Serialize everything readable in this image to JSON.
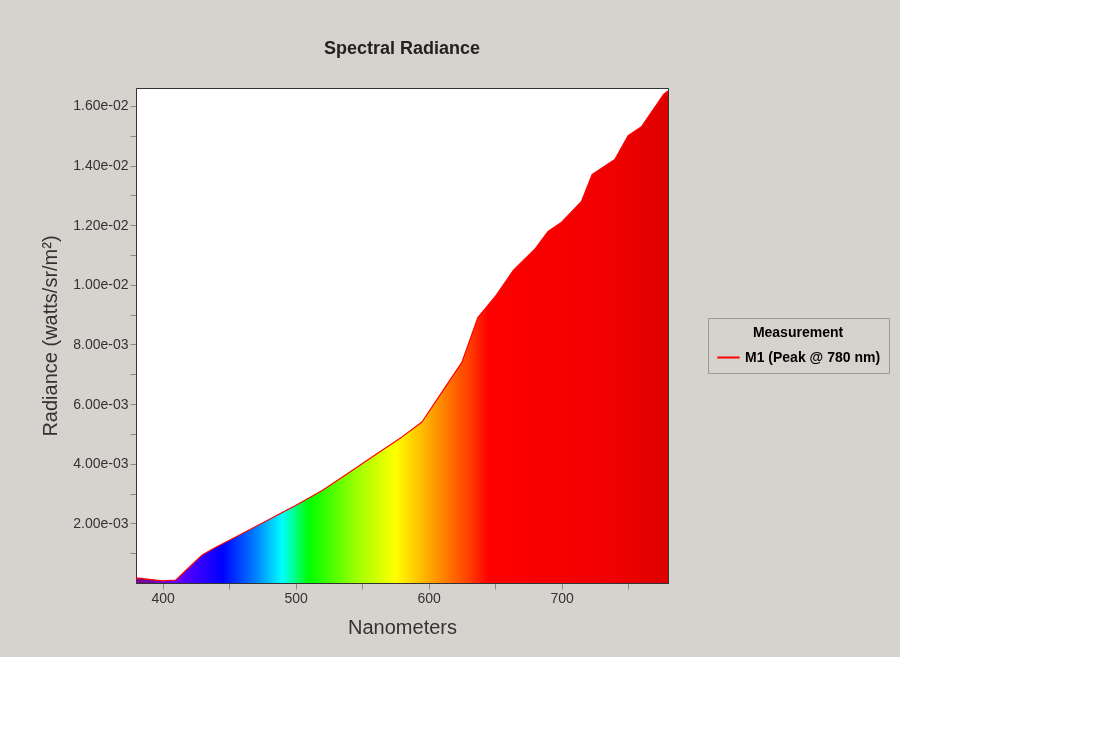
{
  "chart_data": {
    "type": "area",
    "title": "Spectral Radiance",
    "xlabel": "Nanometers",
    "ylabel": "Radiance (watts/sr/m²)",
    "legend_title": "Measurement",
    "legend": "right",
    "grid": false,
    "x": [
      380,
      400,
      410,
      420,
      430,
      440,
      460,
      480,
      500,
      520,
      540,
      560,
      580,
      595,
      610,
      625,
      637,
      650,
      664,
      680,
      690,
      700,
      715,
      723,
      740,
      750,
      760,
      777,
      780
    ],
    "series": [
      {
        "name": "M1 (Peak @ 780 nm)",
        "color": "#ff0000",
        "values": [
          0.00017,
          7e-05,
          0.0001,
          0.00053,
          0.00095,
          0.0012,
          0.00166,
          0.00213,
          0.0026,
          0.0031,
          0.0037,
          0.0043,
          0.0049,
          0.0054,
          0.0064,
          0.0074,
          0.0089,
          0.0096,
          0.0105,
          0.0112,
          0.0118,
          0.0121,
          0.0128,
          0.0137,
          0.0142,
          0.015,
          0.0153,
          0.0164,
          0.0165
        ]
      }
    ],
    "xlim": [
      380,
      780
    ],
    "xticks": [
      400,
      {
        "value": 450,
        "label": null
      },
      500,
      {
        "value": 550,
        "label": null
      },
      600,
      {
        "value": 650,
        "label": null
      },
      700,
      {
        "value": 750,
        "label": null
      }
    ],
    "ylim": [
      0,
      0.0166
    ],
    "yticks": [
      {
        "value": 0.001,
        "label": null
      },
      {
        "value": 0.002,
        "label": "2.00e-03"
      },
      {
        "value": 0.003,
        "label": null
      },
      {
        "value": 0.004,
        "label": "4.00e-03"
      },
      {
        "value": 0.005,
        "label": null
      },
      {
        "value": 0.006,
        "label": "6.00e-03"
      },
      {
        "value": 0.007,
        "label": null
      },
      {
        "value": 0.008,
        "label": "8.00e-03"
      },
      {
        "value": 0.009,
        "label": null
      },
      {
        "value": 0.01,
        "label": "1.00e-02"
      },
      {
        "value": 0.011,
        "label": null
      },
      {
        "value": 0.012,
        "label": "1.20e-02"
      },
      {
        "value": 0.013,
        "label": null
      },
      {
        "value": 0.014,
        "label": "1.40e-02"
      },
      {
        "value": 0.015,
        "label": null
      },
      {
        "value": 0.016,
        "label": "1.60e-02"
      }
    ]
  }
}
